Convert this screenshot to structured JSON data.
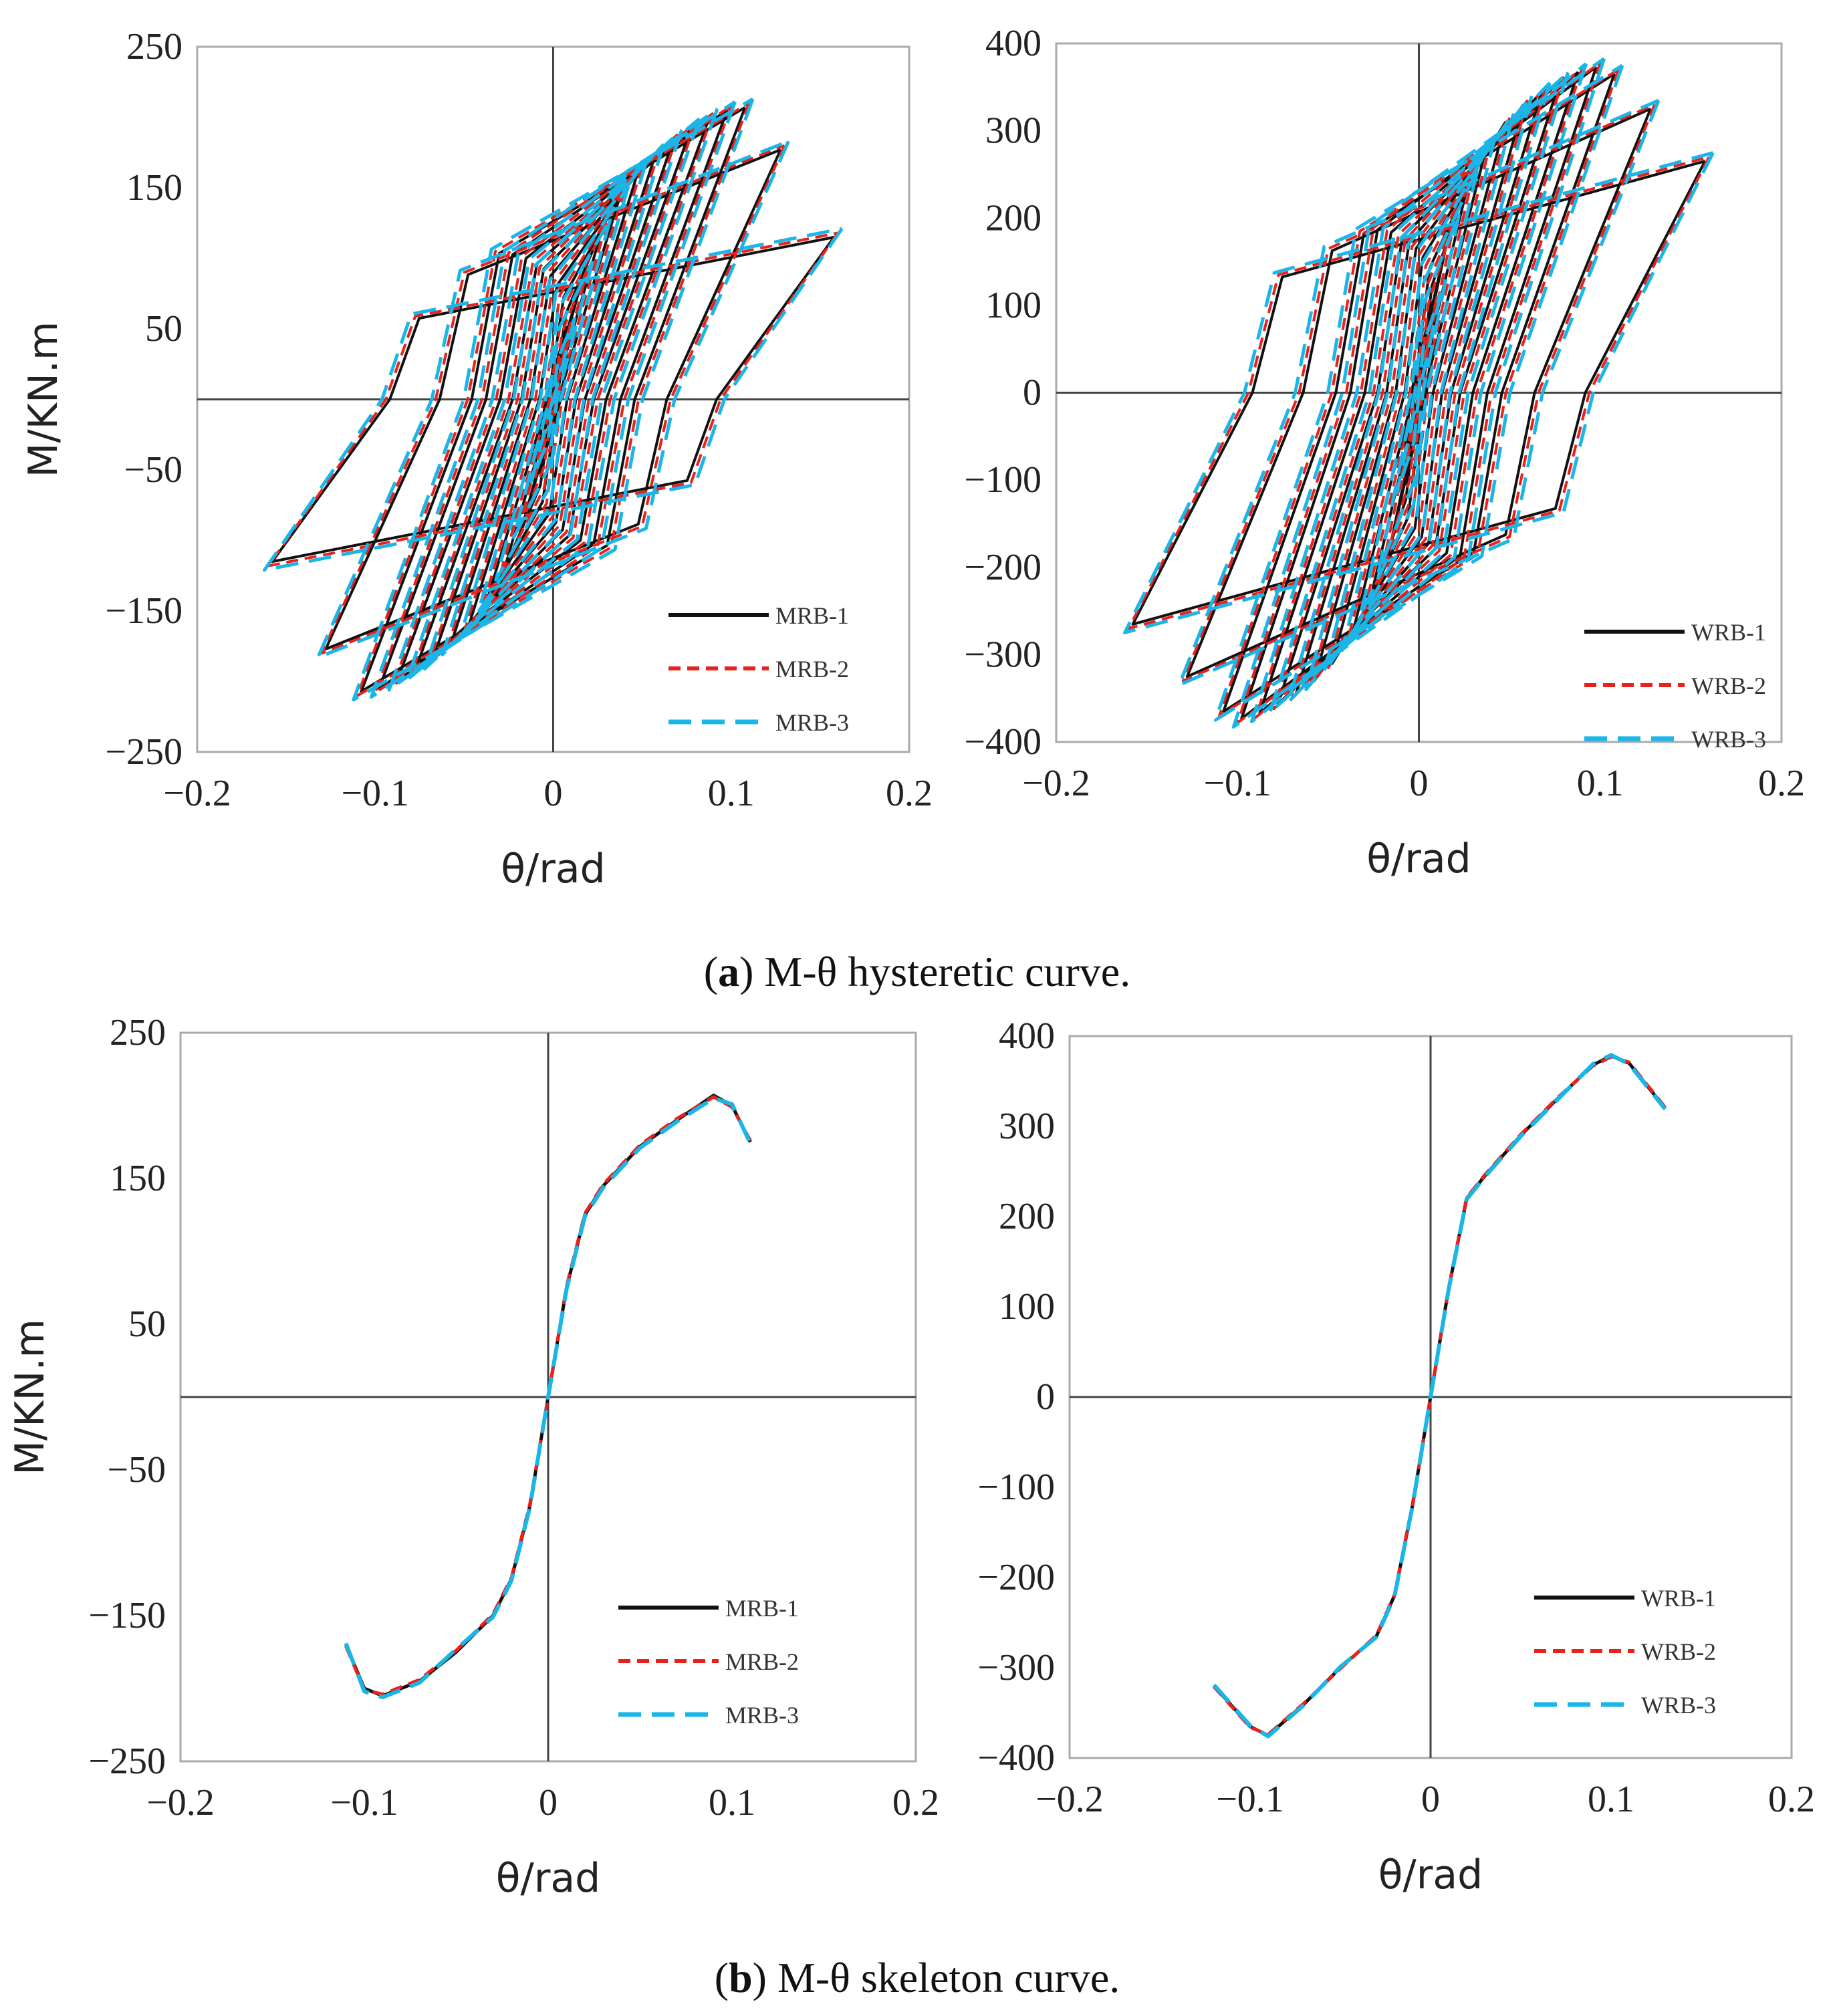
{
  "captions": [
    {
      "open": "(",
      "letter": "a",
      "text": ") M-θ hysteretic curve."
    },
    {
      "open": "(",
      "letter": "b",
      "text": ") M-θ skeleton curve."
    }
  ],
  "colors": {
    "series1": "#111111",
    "series2": "#e8211c",
    "series3": "#1ab6e8",
    "axis": "#444444"
  },
  "chart_data": [
    {
      "id": "a-left",
      "type": "line",
      "subtype": "hysteresis",
      "xlabel": "θ/rad",
      "ylabel": "M/KN.m",
      "xlim": [
        -0.2,
        0.2
      ],
      "ylim": [
        -250,
        250
      ],
      "xticks": [
        -0.2,
        -0.1,
        0,
        0.1,
        0.2
      ],
      "yticks": [
        -250,
        -150,
        -50,
        50,
        150,
        250
      ],
      "xtick_labels": [
        "−0.2",
        "−0.1",
        "0",
        "0.1",
        "0.2"
      ],
      "ytick_labels": [
        "−250",
        "−150",
        "−50",
        "50",
        "150",
        "250"
      ],
      "legend_position": "bottom-right",
      "loops": {
        "amplitudes": [
          0.01,
          0.02,
          0.03,
          0.04,
          0.05,
          0.06,
          0.07,
          0.08,
          0.09,
          0.1,
          0.11,
          0.13,
          0.16
        ],
        "peaks": [
          55,
          95,
          125,
          148,
          165,
          178,
          188,
          196,
          203,
          208,
          210,
          180,
          118
        ],
        "unload_offsets": [
          0.012,
          0.02,
          0.028,
          0.035,
          0.04,
          0.045,
          0.05,
          0.055,
          0.058,
          0.06,
          0.062,
          0.064,
          0.066
        ]
      },
      "series": [
        {
          "name": "MRB-1"
        },
        {
          "name": "MRB-2"
        },
        {
          "name": "MRB-3"
        }
      ]
    },
    {
      "id": "a-right",
      "type": "line",
      "subtype": "hysteresis",
      "xlabel": "θ/rad",
      "ylabel": "",
      "xlim": [
        -0.2,
        0.2
      ],
      "ylim": [
        -400,
        400
      ],
      "xticks": [
        -0.2,
        -0.1,
        0,
        0.1,
        0.2
      ],
      "yticks": [
        -400,
        -300,
        -200,
        -100,
        0,
        100,
        200,
        300,
        400
      ],
      "xtick_labels": [
        "−0.2",
        "−0.1",
        "0",
        "0.1",
        "0.2"
      ],
      "ytick_labels": [
        "−400",
        "−300",
        "−200",
        "−100",
        "0",
        "100",
        "200",
        "300",
        "400"
      ],
      "legend_position": "bottom-right",
      "loops": {
        "amplitudes": [
          0.01,
          0.02,
          0.03,
          0.04,
          0.05,
          0.06,
          0.07,
          0.08,
          0.09,
          0.1,
          0.11,
          0.13,
          0.16
        ],
        "peaks": [
          110,
          200,
          250,
          290,
          315,
          335,
          350,
          362,
          372,
          378,
          370,
          330,
          270
        ],
        "unload_offsets": [
          0.012,
          0.02,
          0.028,
          0.035,
          0.04,
          0.045,
          0.05,
          0.055,
          0.058,
          0.06,
          0.062,
          0.064,
          0.066
        ]
      },
      "series": [
        {
          "name": "WRB-1"
        },
        {
          "name": "WRB-2"
        },
        {
          "name": "WRB-3"
        }
      ]
    },
    {
      "id": "b-left",
      "type": "line",
      "subtype": "skeleton",
      "xlabel": "θ/rad",
      "ylabel": "M/KN.m",
      "xlim": [
        -0.2,
        0.2
      ],
      "ylim": [
        -250,
        250
      ],
      "xticks": [
        -0.2,
        -0.1,
        0,
        0.1,
        0.2
      ],
      "yticks": [
        -250,
        -150,
        -50,
        50,
        150,
        250
      ],
      "xtick_labels": [
        "−0.2",
        "−0.1",
        "0",
        "0.1",
        "0.2"
      ],
      "ytick_labels": [
        "−250",
        "−150",
        "−50",
        "50",
        "150",
        "250"
      ],
      "legend_position": "bottom-right",
      "series": [
        {
          "name": "MRB-1",
          "x": [
            -0.11,
            -0.1,
            -0.09,
            -0.07,
            -0.05,
            -0.03,
            -0.02,
            -0.01,
            0,
            0.01,
            0.02,
            0.03,
            0.05,
            0.07,
            0.09,
            0.1,
            0.11
          ],
          "y": [
            -170,
            -200,
            -205,
            -195,
            -175,
            -150,
            -125,
            -75,
            0,
            75,
            125,
            145,
            172,
            190,
            207,
            200,
            175
          ]
        },
        {
          "name": "MRB-2",
          "x": [
            -0.11,
            -0.1,
            -0.09,
            -0.07,
            -0.05,
            -0.03,
            -0.02,
            -0.01,
            0,
            0.01,
            0.02,
            0.03,
            0.05,
            0.07,
            0.09,
            0.1,
            0.11
          ],
          "y": [
            -171,
            -201,
            -204,
            -194,
            -174,
            -149,
            -124,
            -74,
            0,
            76,
            126,
            146,
            173,
            191,
            206,
            199,
            176
          ]
        },
        {
          "name": "MRB-3",
          "x": [
            -0.11,
            -0.1,
            -0.09,
            -0.07,
            -0.05,
            -0.03,
            -0.02,
            -0.01,
            0,
            0.01,
            0.02,
            0.03,
            0.05,
            0.07,
            0.09,
            0.1,
            0.11
          ],
          "y": [
            -169,
            -202,
            -206,
            -196,
            -173,
            -151,
            -126,
            -76,
            0,
            74,
            124,
            144,
            171,
            189,
            205,
            201,
            174
          ]
        }
      ]
    },
    {
      "id": "b-right",
      "type": "line",
      "subtype": "skeleton",
      "xlabel": "θ/rad",
      "ylabel": "",
      "xlim": [
        -0.2,
        0.2
      ],
      "ylim": [
        -400,
        400
      ],
      "xticks": [
        -0.2,
        -0.1,
        0,
        0.1,
        0.2
      ],
      "yticks": [
        -400,
        -300,
        -200,
        -100,
        0,
        100,
        200,
        300,
        400
      ],
      "xtick_labels": [
        "−0.2",
        "−0.1",
        "0",
        "0.1",
        "0.2"
      ],
      "ytick_labels": [
        "−400",
        "−300",
        "−200",
        "−100",
        "0",
        "100",
        "200",
        "300",
        "400"
      ],
      "legend_position": "bottom-right",
      "series": [
        {
          "name": "WRB-1",
          "x": [
            -0.12,
            -0.1,
            -0.09,
            -0.07,
            -0.05,
            -0.03,
            -0.02,
            -0.01,
            0,
            0.01,
            0.02,
            0.03,
            0.05,
            0.07,
            0.09,
            0.1,
            0.11,
            0.13
          ],
          "y": [
            -320,
            -365,
            -375,
            -340,
            -300,
            -265,
            -220,
            -120,
            0,
            120,
            220,
            245,
            290,
            330,
            368,
            378,
            370,
            320
          ]
        },
        {
          "name": "WRB-2",
          "x": [
            -0.12,
            -0.1,
            -0.09,
            -0.07,
            -0.05,
            -0.03,
            -0.02,
            -0.01,
            0,
            0.01,
            0.02,
            0.03,
            0.05,
            0.07,
            0.09,
            0.1,
            0.11,
            0.13
          ],
          "y": [
            -321,
            -366,
            -374,
            -339,
            -301,
            -264,
            -219,
            -119,
            0,
            121,
            221,
            246,
            291,
            331,
            367,
            377,
            371,
            321
          ]
        },
        {
          "name": "WRB-3",
          "x": [
            -0.12,
            -0.1,
            -0.09,
            -0.07,
            -0.05,
            -0.03,
            -0.02,
            -0.01,
            0,
            0.01,
            0.02,
            0.03,
            0.05,
            0.07,
            0.09,
            0.1,
            0.11,
            0.13
          ],
          "y": [
            -319,
            -364,
            -376,
            -341,
            -299,
            -266,
            -221,
            -121,
            0,
            119,
            219,
            244,
            289,
            329,
            369,
            379,
            369,
            319
          ]
        }
      ]
    }
  ]
}
